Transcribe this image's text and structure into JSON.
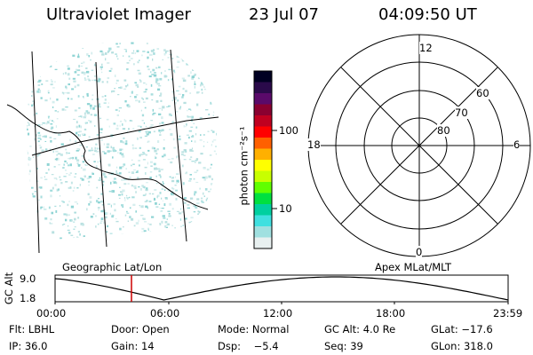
{
  "header": {
    "instrument": "Ultraviolet Imager",
    "date": "23 Jul 07",
    "time": "04:09:50 UT"
  },
  "colorbar": {
    "unit_label": "photon cm⁻²s⁻¹",
    "ticks": [
      "100",
      "10"
    ],
    "colors": [
      "#000022",
      "#2a0a4a",
      "#5a0a6a",
      "#8a0030",
      "#c00020",
      "#ff0000",
      "#ff6000",
      "#ffb000",
      "#ffff00",
      "#c8ff00",
      "#60ff00",
      "#00e040",
      "#00d0a0",
      "#40e0e0",
      "#a0e0e0",
      "#e8f0f0"
    ]
  },
  "polar_plot": {
    "mlt_labels": [
      "12",
      "18",
      "6",
      "0"
    ],
    "lat_labels": [
      "60",
      "70",
      "80"
    ]
  },
  "timeline": {
    "left_label": "Geographic Lat/Lon",
    "right_label": "Apex MLat/MLT",
    "axis_label": "GC Alt",
    "y_ticks": [
      "9.0",
      "1.8"
    ],
    "x_ticks": [
      "00:00",
      "06:00",
      "12:00",
      "18:00",
      "23:59"
    ],
    "current_marker_color": "#cc0000"
  },
  "info": {
    "row1": [
      "Flt: LBHL",
      "Door: Open",
      "Mode: Normal",
      "GC Alt: 4.0 Re",
      "GLat: −17.6"
    ],
    "row2": [
      "IP: 36.0",
      "Gain: 14",
      "Dsp:    −5.4",
      "Seq: 39",
      "GLon: 318.0"
    ]
  }
}
